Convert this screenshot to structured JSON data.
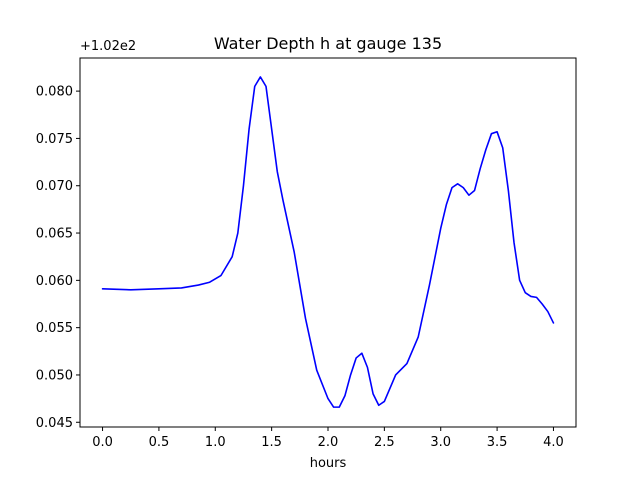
{
  "chart_data": {
    "type": "line",
    "title": "Water Depth h at gauge 135",
    "xlabel": "hours",
    "ylabel": "",
    "offset_text": "+1.02e2",
    "xlim": [
      -0.2,
      4.2
    ],
    "ylim": [
      0.0445,
      0.0835
    ],
    "x_ticks": [
      0.0,
      0.5,
      1.0,
      1.5,
      2.0,
      2.5,
      3.0,
      3.5,
      4.0
    ],
    "x_tick_labels": [
      "0.0",
      "0.5",
      "1.0",
      "1.5",
      "2.0",
      "2.5",
      "3.0",
      "3.5",
      "4.0"
    ],
    "y_ticks": [
      0.045,
      0.05,
      0.055,
      0.06,
      0.065,
      0.07,
      0.075,
      0.08
    ],
    "y_tick_labels": [
      "0.045",
      "0.050",
      "0.055",
      "0.060",
      "0.065",
      "0.070",
      "0.075",
      "0.080"
    ],
    "grid": false,
    "series": [
      {
        "color": "#0000ff",
        "x": [
          0.0,
          0.25,
          0.5,
          0.7,
          0.85,
          0.95,
          1.05,
          1.15,
          1.2,
          1.25,
          1.3,
          1.35,
          1.4,
          1.45,
          1.5,
          1.55,
          1.6,
          1.7,
          1.8,
          1.9,
          2.0,
          2.05,
          2.1,
          2.15,
          2.2,
          2.25,
          2.3,
          2.35,
          2.4,
          2.45,
          2.5,
          2.6,
          2.7,
          2.8,
          2.9,
          3.0,
          3.05,
          3.1,
          3.15,
          3.2,
          3.25,
          3.3,
          3.35,
          3.4,
          3.45,
          3.5,
          3.55,
          3.6,
          3.65,
          3.7,
          3.75,
          3.8,
          3.85,
          3.9,
          3.95,
          4.0
        ],
        "y": [
          0.0591,
          0.059,
          0.0591,
          0.0592,
          0.0595,
          0.0598,
          0.0605,
          0.0625,
          0.065,
          0.07,
          0.076,
          0.0805,
          0.0815,
          0.0805,
          0.076,
          0.0715,
          0.0685,
          0.063,
          0.056,
          0.0505,
          0.0475,
          0.0466,
          0.0466,
          0.0478,
          0.05,
          0.0518,
          0.0523,
          0.0508,
          0.048,
          0.0468,
          0.0472,
          0.05,
          0.0512,
          0.054,
          0.0595,
          0.0655,
          0.068,
          0.0698,
          0.0702,
          0.0698,
          0.069,
          0.0695,
          0.0718,
          0.0738,
          0.0755,
          0.0757,
          0.074,
          0.0695,
          0.064,
          0.06,
          0.0587,
          0.0583,
          0.0582,
          0.0575,
          0.0567,
          0.0555
        ]
      }
    ]
  }
}
